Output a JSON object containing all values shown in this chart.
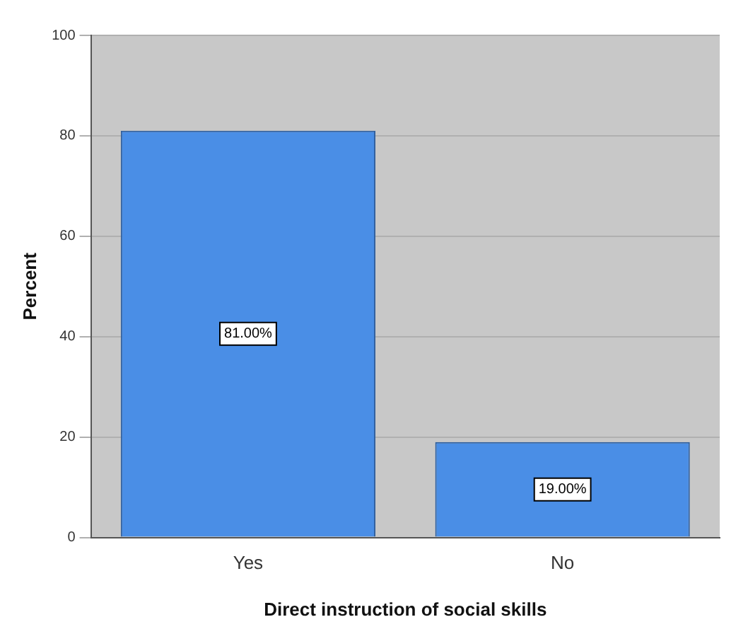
{
  "chart_data": {
    "type": "bar",
    "xlabel": "Direct instruction of social skills",
    "ylabel": "Percent",
    "categories": [
      "Yes",
      "No"
    ],
    "values": [
      81,
      19
    ],
    "value_labels": [
      "81.00%",
      "19.00%"
    ],
    "color": "#4a8ee6",
    "ylim": [
      0,
      100
    ],
    "yticks": [
      0,
      20,
      40,
      60,
      80,
      100
    ],
    "grid": "y",
    "legend": false
  }
}
